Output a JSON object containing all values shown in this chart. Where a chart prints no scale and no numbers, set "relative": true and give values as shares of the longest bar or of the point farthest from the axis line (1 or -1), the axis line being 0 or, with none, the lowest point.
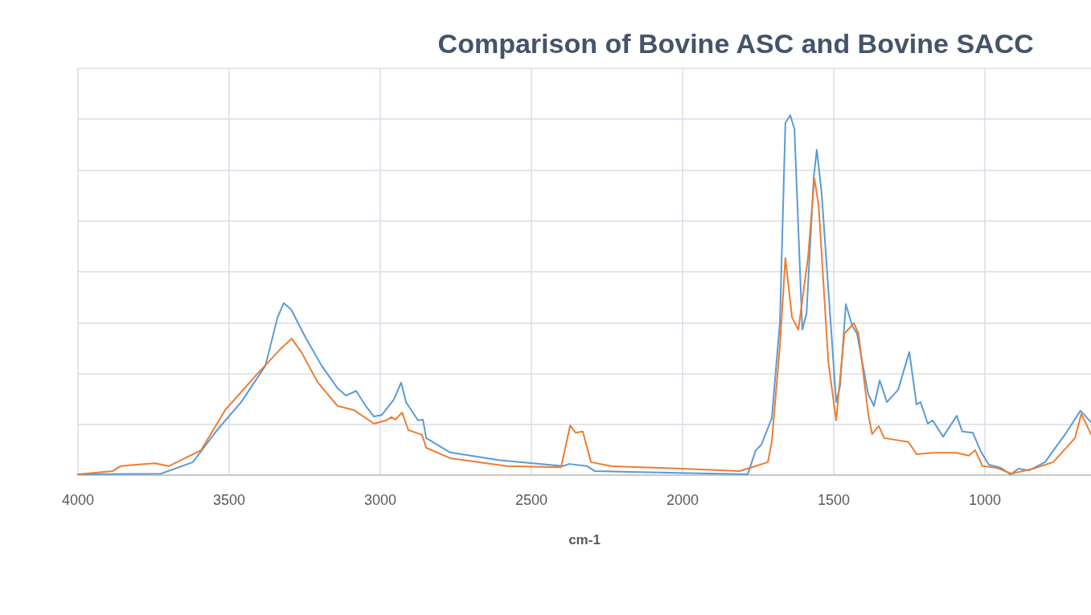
{
  "chart_data": {
    "type": "line",
    "title": "Comparison of Bovine ASC and Bovine SACC",
    "xlabel": "cm-1",
    "relative": true,
    "grid": true,
    "marker": "none",
    "line_style": "solid",
    "xlim": [
      4000,
      649
    ],
    "xticks": [
      4000,
      3500,
      3000,
      2500,
      2000,
      1500,
      1000
    ],
    "series": [
      {
        "color": "#5b9bd5",
        "x": [
          4000,
          3726,
          3620,
          3540,
          3460,
          3380,
          3340,
          3319,
          3295,
          3247,
          3194,
          3141,
          3114,
          3080,
          3048,
          3021,
          2995,
          2955,
          2931,
          2915,
          2875,
          2859,
          2848,
          2769,
          2609,
          2396,
          2375,
          2316,
          2290,
          2077,
          1785,
          1758,
          1739,
          1705,
          1678,
          1660,
          1644,
          1630,
          1604,
          1590,
          1566,
          1556,
          1540,
          1492,
          1479,
          1460,
          1439,
          1423,
          1386,
          1367,
          1348,
          1324,
          1287,
          1250,
          1226,
          1213,
          1189,
          1173,
          1138,
          1093,
          1075,
          1040,
          1013,
          987,
          947,
          915,
          889,
          854,
          801,
          734,
          684,
          649
        ],
        "values": [
          0.002,
          0.004,
          0.036,
          0.125,
          0.203,
          0.304,
          0.438,
          0.478,
          0.46,
          0.382,
          0.304,
          0.241,
          0.221,
          0.234,
          0.192,
          0.163,
          0.167,
          0.21,
          0.257,
          0.203,
          0.152,
          0.154,
          0.103,
          0.063,
          0.042,
          0.025,
          0.031,
          0.025,
          0.011,
          0.007,
          0.002,
          0.069,
          0.085,
          0.158,
          0.426,
          0.978,
          1.0,
          0.962,
          0.404,
          0.449,
          0.828,
          0.904,
          0.783,
          0.203,
          0.248,
          0.475,
          0.415,
          0.393,
          0.225,
          0.192,
          0.263,
          0.203,
          0.237,
          0.342,
          0.196,
          0.203,
          0.143,
          0.152,
          0.107,
          0.165,
          0.121,
          0.118,
          0.065,
          0.029,
          0.02,
          0.002,
          0.018,
          0.013,
          0.036,
          0.114,
          0.179,
          0.147
        ]
      },
      {
        "color": "#ed7d31",
        "x": [
          4000,
          3886,
          3859,
          3806,
          3745,
          3700,
          3646,
          3593,
          3513,
          3407,
          3327,
          3293,
          3261,
          3208,
          3141,
          3088,
          3021,
          2981,
          2963,
          2950,
          2928,
          2907,
          2862,
          2848,
          2769,
          2582,
          2402,
          2372,
          2354,
          2330,
          2303,
          2237,
          1998,
          1812,
          1758,
          1718,
          1705,
          1678,
          1660,
          1638,
          1617,
          1585,
          1564,
          1550,
          1518,
          1492,
          1465,
          1433,
          1418,
          1386,
          1373,
          1351,
          1333,
          1253,
          1226,
          1173,
          1093,
          1053,
          1032,
          1008,
          960,
          912,
          840,
          774,
          702,
          681,
          649
        ],
        "values": [
          0.002,
          0.011,
          0.025,
          0.029,
          0.033,
          0.025,
          0.047,
          0.069,
          0.181,
          0.281,
          0.353,
          0.379,
          0.342,
          0.259,
          0.192,
          0.181,
          0.143,
          0.152,
          0.161,
          0.154,
          0.174,
          0.125,
          0.112,
          0.076,
          0.047,
          0.025,
          0.022,
          0.138,
          0.118,
          0.121,
          0.036,
          0.025,
          0.018,
          0.011,
          0.025,
          0.036,
          0.092,
          0.36,
          0.603,
          0.438,
          0.404,
          0.605,
          0.824,
          0.75,
          0.315,
          0.152,
          0.393,
          0.422,
          0.393,
          0.17,
          0.114,
          0.136,
          0.103,
          0.092,
          0.058,
          0.062,
          0.062,
          0.054,
          0.069,
          0.025,
          0.02,
          0.004,
          0.018,
          0.036,
          0.103,
          0.17,
          0.114
        ]
      }
    ]
  }
}
